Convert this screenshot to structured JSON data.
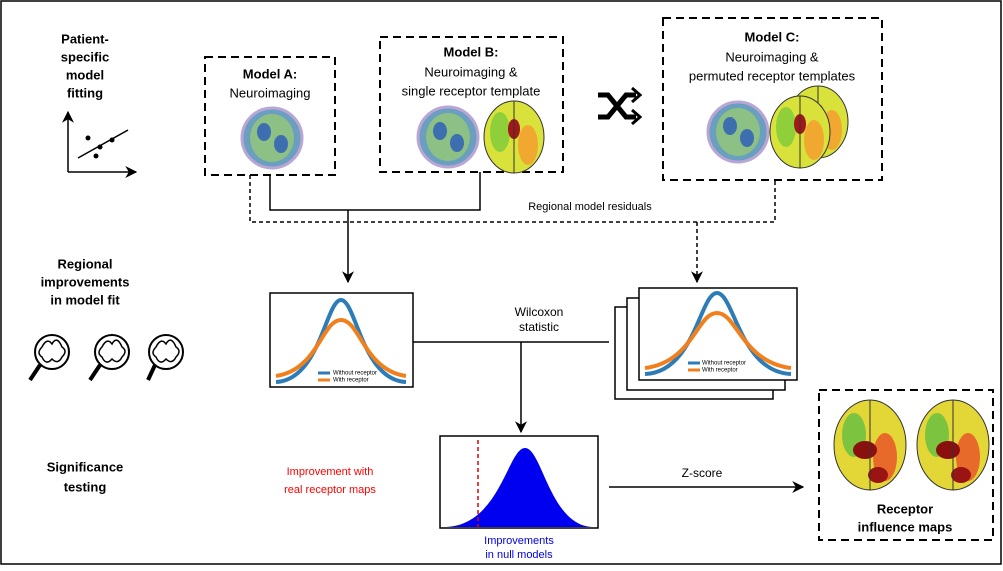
{
  "stages": [
    {
      "lines": [
        "Patient-",
        "specific",
        "model",
        "fitting"
      ]
    },
    {
      "lines": [
        "Regional",
        "improvements",
        "in model fit"
      ]
    },
    {
      "lines": [
        "Significance",
        "testing"
      ]
    }
  ],
  "models": [
    {
      "title": "Model A:",
      "lines": [
        "Neuroimaging"
      ]
    },
    {
      "title": "Model B:",
      "lines": [
        "Neuroimaging &",
        "single receptor template"
      ]
    },
    {
      "title": "Model C:",
      "lines": [
        "Neuroimaging &",
        "permuted receptor templates"
      ]
    }
  ],
  "residuals": "Regional model residuals",
  "wilcoxon": [
    "Wilcoxon",
    "statistic"
  ],
  "legend": [
    "Without receptor",
    "With receptor"
  ],
  "real": [
    "Improvement with",
    "real receptor maps"
  ],
  "null": [
    "Improvements",
    "in null models"
  ],
  "zscore": "Z-score",
  "output": [
    "Receptor",
    "influence maps"
  ]
}
